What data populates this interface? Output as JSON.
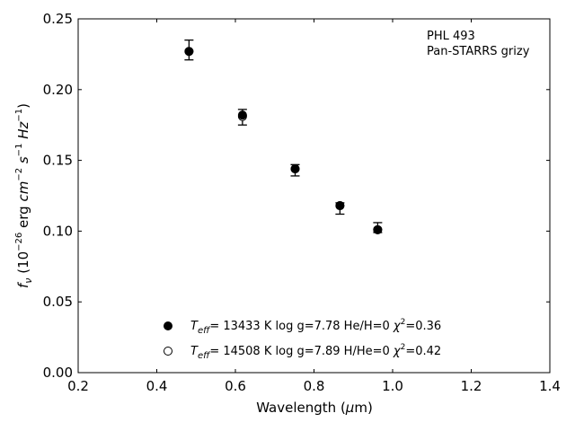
{
  "chart_data": {
    "type": "scatter",
    "title": "",
    "xlabel": "Wavelength (μm)",
    "ylabel": "f_ν (10^-26 erg cm^-2 s^-1 Hz^-1)",
    "xlim": [
      0.2,
      1.4
    ],
    "ylim": [
      0.0,
      0.25
    ],
    "x_ticks": [
      "0.2",
      "0.4",
      "0.6",
      "0.8",
      "1.0",
      "1.2",
      "1.4"
    ],
    "y_ticks": [
      "0.00",
      "0.05",
      "0.10",
      "0.15",
      "0.20",
      "0.25"
    ],
    "grid": false,
    "annotation_lines": [
      "PHL 493",
      "Pan-STARRS grizy"
    ],
    "observed": {
      "x": [
        0.482,
        0.618,
        0.752,
        0.866,
        0.962
      ],
      "y": [
        0.228,
        0.181,
        0.143,
        0.116,
        0.102
      ],
      "yerr_low": [
        0.221,
        0.175,
        0.139,
        0.112,
        0.099
      ],
      "yerr_high": [
        0.235,
        0.186,
        0.147,
        0.12,
        0.106
      ]
    },
    "series": [
      {
        "name": "T_eff= 13433 K  log g=7.78  He/H=0  χ²=0.36",
        "marker": "filled",
        "x": [
          0.482,
          0.618,
          0.752,
          0.866,
          0.962
        ],
        "y": [
          0.227,
          0.182,
          0.144,
          0.118,
          0.101
        ]
      },
      {
        "name": "T_eff= 14508 K  log g=7.89  H/He=0  χ²=0.42",
        "marker": "open",
        "x": [
          0.482,
          0.618,
          0.752,
          0.866,
          0.962
        ],
        "y": [
          0.227,
          0.181,
          0.144,
          0.118,
          0.101
        ]
      }
    ],
    "legend": {
      "position": "lower-center",
      "entries": [
        {
          "teff": "13433",
          "rest": "= 13433 K  log g=7.78  He/H=0  ",
          "chi": "=0.36"
        },
        {
          "teff": "14508",
          "rest": "= 14508 K  log g=7.89  H/He=0  ",
          "chi": "=0.42"
        }
      ]
    },
    "colors": {
      "marker": "#000000",
      "axis": "#000000"
    }
  }
}
